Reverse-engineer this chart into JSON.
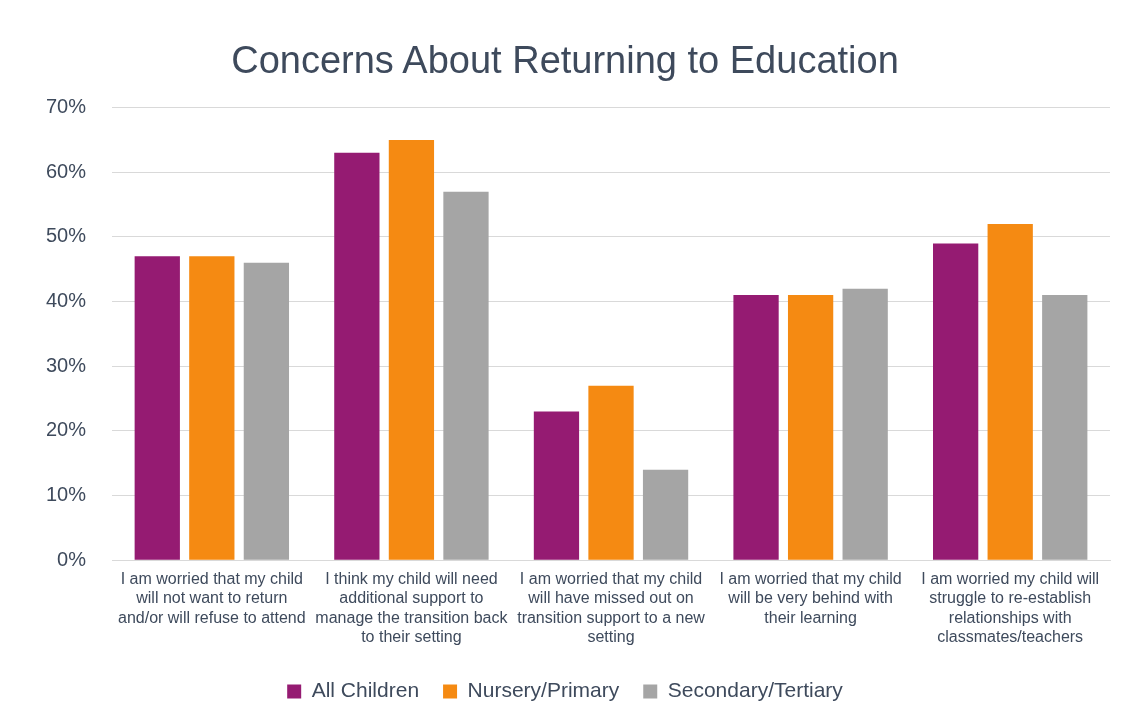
{
  "chart_data": {
    "type": "bar",
    "title": "Concerns About Returning to Education",
    "categories": [
      "I am worried that my child will not want to return and/or will refuse to attend",
      "I think my child will need additional support to manage the transition back to their setting",
      "I am worried that my child will have missed out on transition support to a new setting",
      "I am worried that my child will be very behind with their learning",
      "I am worried my child will struggle to re-establish relationships with classmates/teachers"
    ],
    "series": [
      {
        "name": "All Children",
        "color": "#951b72",
        "values": [
          47,
          63,
          23,
          41,
          49
        ]
      },
      {
        "name": "Nursery/Primary",
        "color": "#f58a12",
        "values": [
          47,
          65,
          27,
          41,
          52
        ]
      },
      {
        "name": "Secondary/Tertiary",
        "color": "#a5a5a5",
        "values": [
          46,
          57,
          14,
          42,
          41
        ]
      }
    ],
    "ylim": [
      0,
      70
    ],
    "yticks": [
      {
        "value": 0,
        "label": "0%"
      },
      {
        "value": 10,
        "label": "10%"
      },
      {
        "value": 20,
        "label": "20%"
      },
      {
        "value": 30,
        "label": "30%"
      },
      {
        "value": 40,
        "label": "40%"
      },
      {
        "value": 50,
        "label": "50%"
      },
      {
        "value": 60,
        "label": "60%"
      },
      {
        "value": 70,
        "label": "70%"
      }
    ],
    "grid": "y",
    "legend": "bottom"
  }
}
